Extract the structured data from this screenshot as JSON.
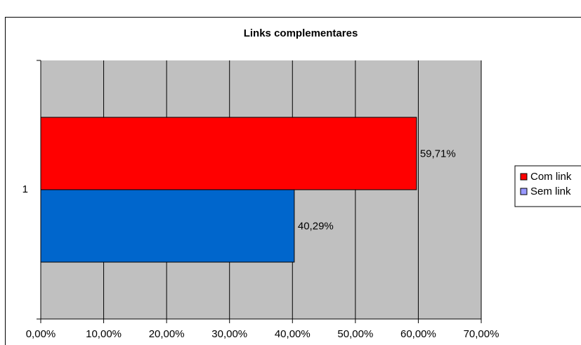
{
  "chart_data": {
    "type": "bar",
    "orientation": "horizontal",
    "title": "Links complementares",
    "categories": [
      "1"
    ],
    "series": [
      {
        "name": "Com link",
        "values": [
          59.71
        ],
        "label": "59,71%",
        "color": "#ff0000"
      },
      {
        "name": "Sem link",
        "values": [
          40.29
        ],
        "label": "40,29%",
        "color": "#0066cc"
      }
    ],
    "legend_colors": [
      "#ff0000",
      "#9999ff"
    ],
    "xlim": [
      0,
      70
    ],
    "xticks": [
      "0,00%",
      "10,00%",
      "20,00%",
      "30,00%",
      "40,00%",
      "50,00%",
      "60,00%",
      "70,00%"
    ],
    "grid": true,
    "plot_background": "#c0c0c0",
    "legend_position": "right"
  }
}
